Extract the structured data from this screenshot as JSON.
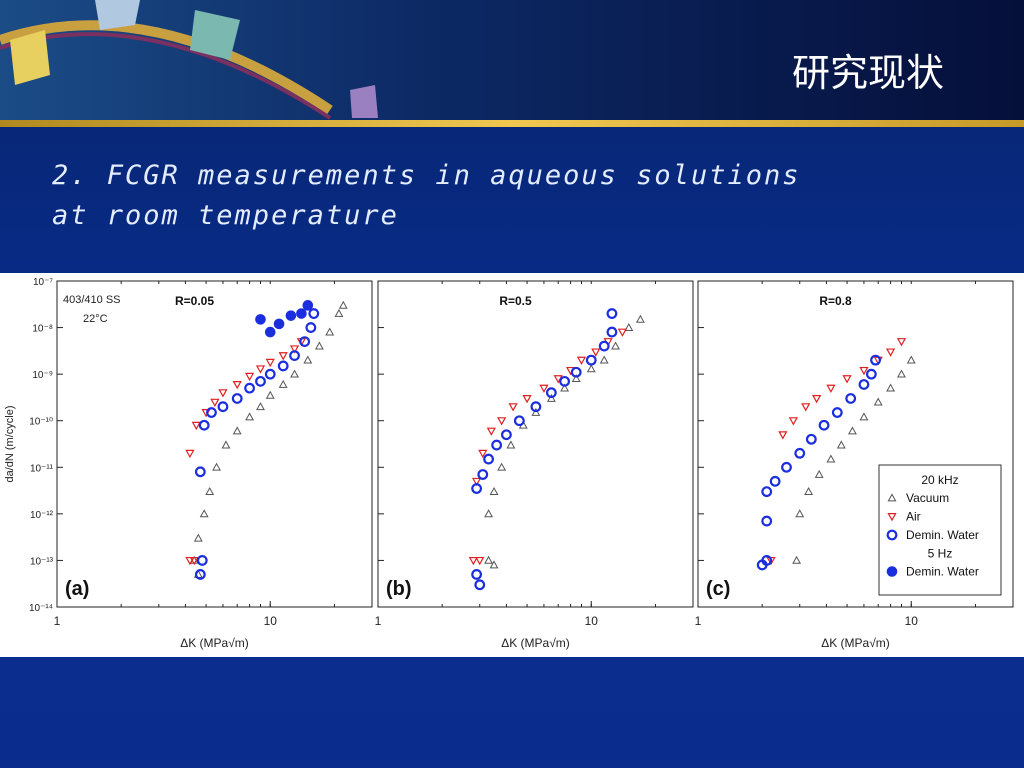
{
  "header": {
    "title": "研究现状",
    "subtitle": [
      "2. FCGR measurements in aqueous solutions",
      "at room temperature"
    ]
  },
  "chart_data": [
    {
      "type": "scatter",
      "title": "R=0.05",
      "panel_label": "(a)",
      "annotations": [
        "403/410 SS",
        "22°C"
      ],
      "x_label": "ΔK (MPa√m)",
      "y_label": "da/dN (m/cycle)",
      "xscale": "log",
      "yscale": "log",
      "xlim": [
        1,
        30
      ],
      "ylim": [
        1e-14,
        1e-07
      ],
      "xticks": [
        1,
        10
      ],
      "yticks": [
        {
          "value": 1e-07,
          "label": "10⁻⁷"
        },
        {
          "value": 1e-08,
          "label": "10⁻⁸"
        },
        {
          "value": 1e-09,
          "label": "10⁻⁹"
        },
        {
          "value": 1e-10,
          "label": "10⁻¹⁰"
        },
        {
          "value": 1e-11,
          "label": "10⁻¹¹"
        },
        {
          "value": 1e-12,
          "label": "10⁻¹²"
        },
        {
          "value": 1e-13,
          "label": "10⁻¹³"
        },
        {
          "value": 1e-14,
          "label": "10⁻¹⁴"
        }
      ],
      "series": [
        {
          "color": "#555555",
          "marker": "triangle-up",
          "x": [
            4.4,
            4.6,
            4.6,
            4.9,
            5.2,
            5.6,
            6.2,
            7,
            8,
            9,
            10,
            11.5,
            13,
            15,
            17,
            19,
            21,
            22
          ],
          "values": [
            1e-13,
            5e-14,
            3e-13,
            1e-12,
            3e-12,
            1e-11,
            3e-11,
            6e-11,
            1.2e-10,
            2e-10,
            3.5e-10,
            6e-10,
            1e-09,
            2e-09,
            4e-09,
            8e-09,
            2e-08,
            3e-08
          ]
        },
        {
          "color": "#e02020",
          "marker": "triangle-down",
          "x": [
            4.2,
            4.4,
            4.2,
            4.5,
            5,
            5.5,
            6,
            7,
            8,
            9,
            10,
            11.5,
            13,
            14
          ],
          "values": [
            1e-13,
            1e-13,
            2e-11,
            8e-11,
            1.5e-10,
            2.5e-10,
            4e-10,
            6e-10,
            9e-10,
            1.3e-09,
            1.8e-09,
            2.5e-09,
            3.5e-09,
            5e-09
          ]
        },
        {
          "color": "#1a2ee0",
          "marker": "circle-open",
          "x": [
            4.7,
            4.8,
            4.7,
            4.9,
            5.3,
            6,
            7,
            8,
            9,
            10,
            11.5,
            13,
            14.5,
            15.5,
            16
          ],
          "values": [
            5e-14,
            1e-13,
            8e-12,
            8e-11,
            1.5e-10,
            2e-10,
            3e-10,
            5e-10,
            7e-10,
            1e-09,
            1.5e-09,
            2.5e-09,
            5e-09,
            1e-08,
            2e-08
          ]
        },
        {
          "color": "#1a2ee0",
          "marker": "circle-filled",
          "x": [
            9,
            10,
            11,
            12.5,
            14,
            15
          ],
          "values": [
            1.5e-08,
            8e-09,
            1.2e-08,
            1.8e-08,
            2e-08,
            3e-08
          ]
        }
      ]
    },
    {
      "type": "scatter",
      "title": "R=0.5",
      "panel_label": "(b)",
      "x_label": "ΔK (MPa√m)",
      "xscale": "log",
      "yscale": "log",
      "xlim": [
        1,
        30
      ],
      "ylim": [
        1e-14,
        1e-07
      ],
      "xticks": [
        1,
        10
      ],
      "series": [
        {
          "color": "#555555",
          "marker": "triangle-up",
          "x": [
            3.3,
            3.5,
            3.3,
            3.5,
            3.8,
            4.2,
            4.8,
            5.5,
            6.5,
            7.5,
            8.5,
            10,
            11.5,
            13,
            15,
            17
          ],
          "values": [
            1e-13,
            8e-14,
            1e-12,
            3e-12,
            1e-11,
            3e-11,
            8e-11,
            1.5e-10,
            3e-10,
            5e-10,
            8e-10,
            1.3e-09,
            2e-09,
            4e-09,
            1e-08,
            1.5e-08
          ]
        },
        {
          "color": "#e02020",
          "marker": "triangle-down",
          "x": [
            2.8,
            3.0,
            2.9,
            3.1,
            3.4,
            3.8,
            4.3,
            5,
            6,
            7,
            8,
            9,
            10.5,
            12,
            14
          ],
          "values": [
            1e-13,
            1e-13,
            5e-12,
            2e-11,
            6e-11,
            1e-10,
            2e-10,
            3e-10,
            5e-10,
            8e-10,
            1.2e-09,
            2e-09,
            3e-09,
            5e-09,
            8e-09
          ]
        },
        {
          "color": "#1a2ee0",
          "marker": "circle-open",
          "x": [
            2.9,
            3.0,
            2.9,
            3.1,
            3.3,
            3.6,
            4,
            4.6,
            5.5,
            6.5,
            7.5,
            8.5,
            10,
            11.5,
            12.5,
            12.5
          ],
          "values": [
            5e-14,
            3e-14,
            3.5e-12,
            7e-12,
            1.5e-11,
            3e-11,
            5e-11,
            1e-10,
            2e-10,
            4e-10,
            7e-10,
            1.1e-09,
            2e-09,
            4e-09,
            8e-09,
            2e-08
          ]
        }
      ]
    },
    {
      "type": "scatter",
      "title": "R=0.8",
      "panel_label": "(c)",
      "x_label": "ΔK (MPa√m)",
      "xscale": "log",
      "yscale": "log",
      "xlim": [
        1,
        30
      ],
      "ylim": [
        1e-14,
        1e-07
      ],
      "xticks": [
        1,
        10
      ],
      "legend": {
        "position": "lower right",
        "headers": [
          "20 kHz",
          "5 Hz"
        ]
      },
      "series": [
        {
          "name": "Vacuum",
          "group": 0,
          "color": "#555555",
          "marker": "triangle-up",
          "x": [
            2.9,
            3,
            3.3,
            3.7,
            4.2,
            4.7,
            5.3,
            6,
            7,
            8,
            9,
            10
          ],
          "values": [
            1e-13,
            1e-12,
            3e-12,
            7e-12,
            1.5e-11,
            3e-11,
            6e-11,
            1.2e-10,
            2.5e-10,
            5e-10,
            1e-09,
            2e-09
          ]
        },
        {
          "name": "Air",
          "group": 0,
          "color": "#e02020",
          "marker": "triangle-down",
          "x": [
            2.2,
            2.5,
            2.8,
            3.2,
            3.6,
            4.2,
            5,
            6,
            7,
            8,
            9
          ],
          "values": [
            1e-13,
            5e-11,
            1e-10,
            2e-10,
            3e-10,
            5e-10,
            8e-10,
            1.2e-09,
            2e-09,
            3e-09,
            5e-09
          ]
        },
        {
          "name": "Demin. Water",
          "group": 0,
          "color": "#1a2ee0",
          "marker": "circle-open",
          "x": [
            2.0,
            2.1,
            2.1,
            2.1,
            2.3,
            2.6,
            3,
            3.4,
            3.9,
            4.5,
            5.2,
            6,
            6.5,
            6.8
          ],
          "values": [
            8e-14,
            1e-13,
            7e-13,
            3e-12,
            5e-12,
            1e-11,
            2e-11,
            4e-11,
            8e-11,
            1.5e-10,
            3e-10,
            6e-10,
            1e-09,
            2e-09
          ]
        },
        {
          "name": "Demin. Water",
          "group": 1,
          "color": "#1a2ee0",
          "marker": "circle-filled",
          "x": [],
          "values": []
        }
      ]
    }
  ]
}
